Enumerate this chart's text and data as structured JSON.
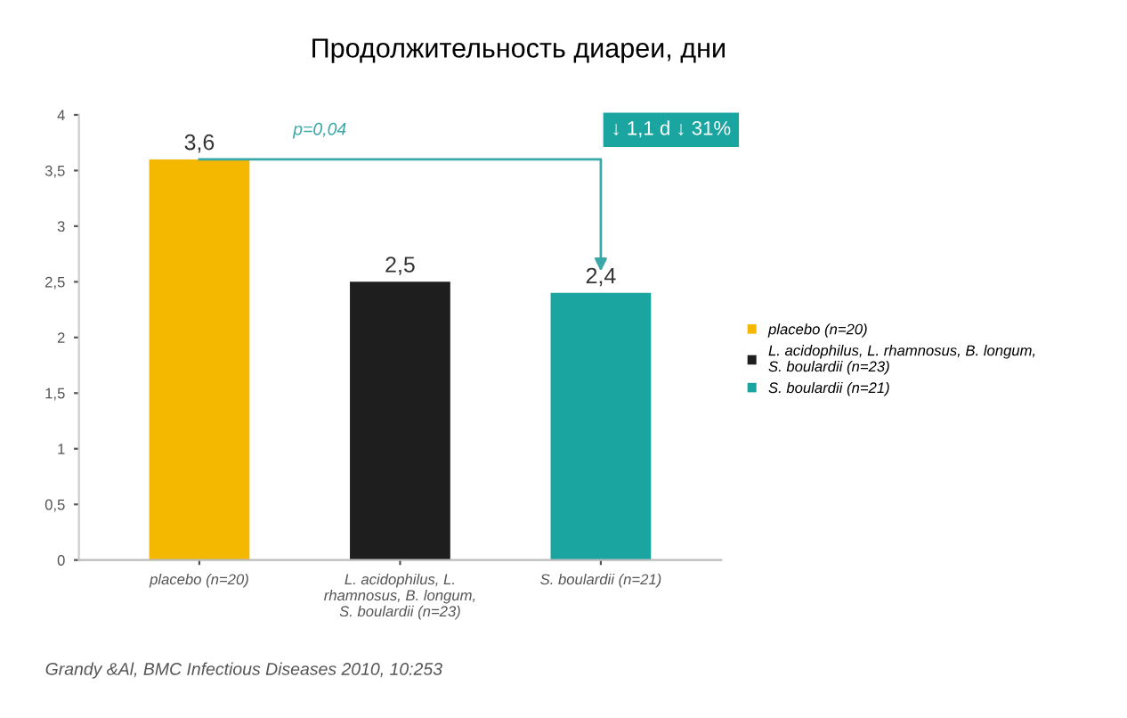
{
  "chart_data": {
    "type": "bar",
    "title": "Продолжительность диареи, дни",
    "categories": [
      "placebo (n=20)",
      "L. acidophilus, L.\nrhamnosus, B. longum,\nS. boulardii (n=23)",
      "S. boulardii (n=21)"
    ],
    "series": [
      {
        "name": "placebo (n=20)",
        "color": "#f5b800",
        "values": [
          3.6,
          null,
          null
        ],
        "value_labels": [
          "3,6",
          null,
          null
        ]
      },
      {
        "name": "L. acidophilus, L. rhamnosus, B. longum,\nS. boulardii (n=23)",
        "color": "#1e1e1e",
        "values": [
          null,
          2.5,
          null
        ],
        "value_labels": [
          null,
          "2,5",
          null
        ]
      },
      {
        "name": "S. boulardii (n=21)",
        "color": "#1aa5a0",
        "values": [
          null,
          null,
          2.4
        ],
        "value_labels": [
          null,
          null,
          "2,4"
        ]
      }
    ],
    "ylim": [
      0,
      4
    ],
    "yticks": [
      0,
      {
        "value": 0.5,
        "label": "0,5"
      },
      1,
      {
        "value": 1.5,
        "label": "1,5"
      },
      2,
      {
        "value": 2.5,
        "label": "2,5"
      },
      3,
      {
        "value": 3.5,
        "label": "3,5"
      },
      4
    ],
    "legend": "right",
    "grid": false,
    "annotations": [
      "p=0,04",
      "↓ 1,1 d ↓ 31%",
      "Grandy &Al, BMC Infectious Diseases 2010, 10:253"
    ]
  }
}
